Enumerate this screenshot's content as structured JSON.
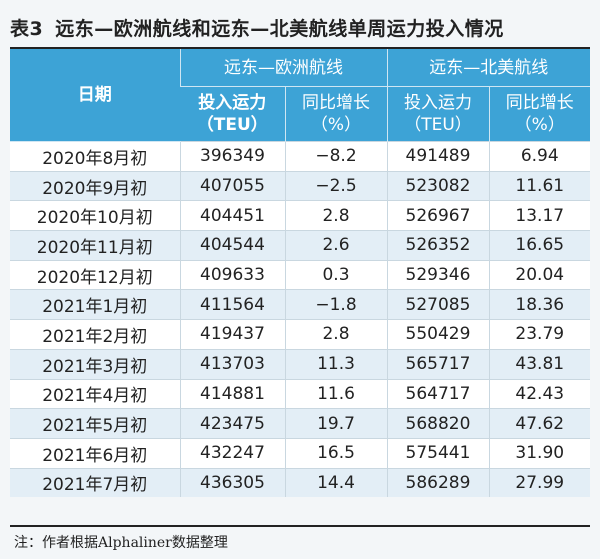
{
  "title": {
    "number": "表3",
    "text": "远东—欧洲航线和远东—北美航线单周运力投入情况"
  },
  "table": {
    "date_header": "日期",
    "groups": [
      "远东—欧洲航线",
      "远东—北美航线"
    ],
    "sub_headers": [
      {
        "line1": "投入运力",
        "line2": "（TEU）"
      },
      {
        "line1": "同比增长",
        "line2": "（%）"
      },
      {
        "line1": "投入运力",
        "line2": "（TEU）"
      },
      {
        "line1": "同比增长",
        "line2": "（%）"
      }
    ],
    "rows": [
      [
        "2020年8月初",
        "396349",
        "−8.2",
        "491489",
        "6.94"
      ],
      [
        "2020年9月初",
        "407055",
        "−2.5",
        "523082",
        "11.61"
      ],
      [
        "2020年10月初",
        "404451",
        "2.8",
        "526967",
        "13.17"
      ],
      [
        "2020年11月初",
        "404544",
        "2.6",
        "526352",
        "16.65"
      ],
      [
        "2020年12月初",
        "409633",
        "0.3",
        "529346",
        "20.04"
      ],
      [
        "2021年1月初",
        "411564",
        "−1.8",
        "527085",
        "18.36"
      ],
      [
        "2021年2月初",
        "419437",
        "2.8",
        "550429",
        "23.79"
      ],
      [
        "2021年3月初",
        "413703",
        "11.3",
        "565717",
        "43.81"
      ],
      [
        "2021年4月初",
        "414881",
        "11.6",
        "564717",
        "42.43"
      ],
      [
        "2021年5月初",
        "423475",
        "19.7",
        "568820",
        "47.62"
      ],
      [
        "2021年6月初",
        "432247",
        "16.5",
        "575441",
        "31.90"
      ],
      [
        "2021年7月初",
        "436305",
        "14.4",
        "586289",
        "27.99"
      ]
    ]
  },
  "note": "注：作者根据Alphaliner数据整理",
  "colors": {
    "header_bg": "#3da3d6",
    "stripe": "#e3eef6"
  }
}
